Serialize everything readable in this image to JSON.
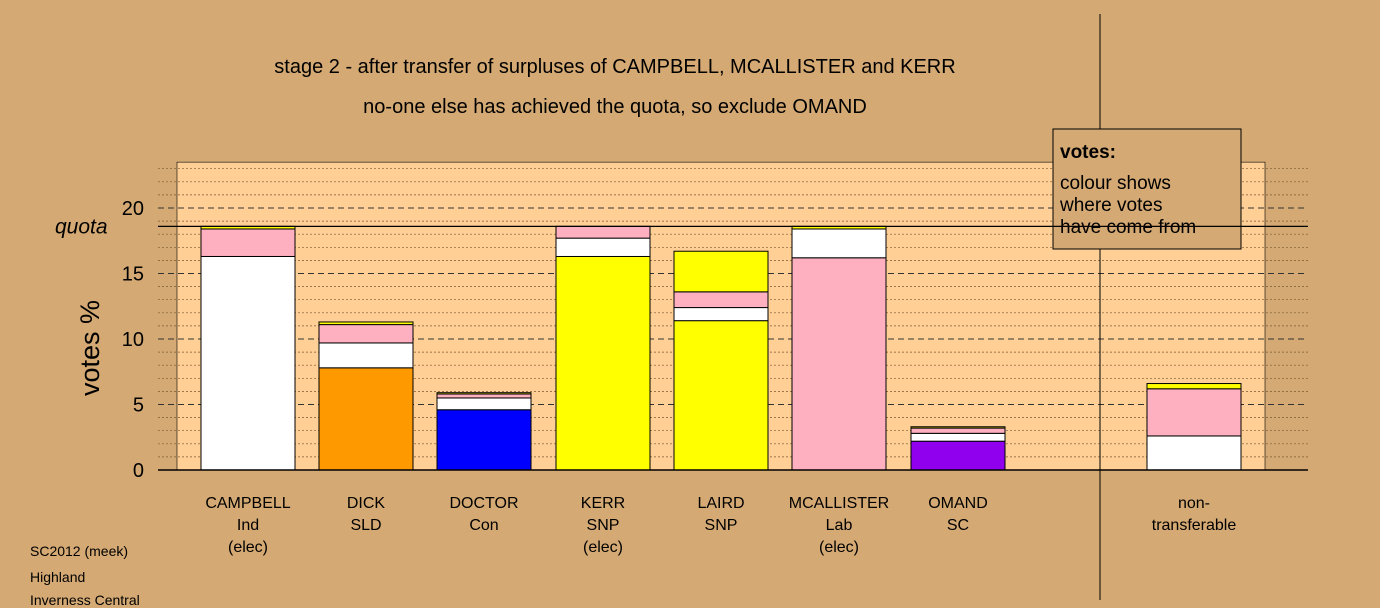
{
  "chart_data": {
    "type": "bar",
    "stacked": true,
    "title_lines": [
      "stage 2 - after transfer of surpluses of CAMPBELL, MCALLISTER and KERR",
      "no-one else has achieved the quota, so exclude OMAND"
    ],
    "ylabel": "votes %",
    "ylim": [
      0,
      23.5
    ],
    "yticks": [
      0,
      5,
      10,
      15,
      20
    ],
    "quota": 18.6,
    "quota_label": "quota",
    "grid": "major dashed every 5, minor dotted every 1",
    "colors": {
      "Ind": "#ffffff",
      "SLD": "#ff9900",
      "Con": "#0000ff",
      "SNP": "#ffff00",
      "Lab": "#ffb0c0",
      "SC": "#9000ee",
      "plot_bg": "#ffcf96",
      "page_bg": "#d4a973"
    },
    "candidates": [
      {
        "name": "CAMPBELL",
        "party": "Ind",
        "note": "(elec)",
        "segments": [
          {
            "from": "Ind",
            "value": 16.3
          },
          {
            "from": "Lab",
            "value": 2.1
          },
          {
            "from": "SNP",
            "value": 0.2
          }
        ]
      },
      {
        "name": "DICK",
        "party": "SLD",
        "note": "",
        "segments": [
          {
            "from": "SLD",
            "value": 7.8
          },
          {
            "from": "Ind",
            "value": 1.9
          },
          {
            "from": "Lab",
            "value": 1.4
          },
          {
            "from": "SNP",
            "value": 0.2
          }
        ]
      },
      {
        "name": "DOCTOR",
        "party": "Con",
        "note": "",
        "segments": [
          {
            "from": "Con",
            "value": 4.6
          },
          {
            "from": "Ind",
            "value": 0.9
          },
          {
            "from": "Lab",
            "value": 0.3
          },
          {
            "from": "SNP",
            "value": 0.1
          }
        ]
      },
      {
        "name": "KERR",
        "party": "SNP",
        "note": "(elec)",
        "segments": [
          {
            "from": "SNP",
            "value": 16.3
          },
          {
            "from": "Ind",
            "value": 1.4
          },
          {
            "from": "Lab",
            "value": 0.9
          }
        ]
      },
      {
        "name": "LAIRD",
        "party": "SNP",
        "note": "",
        "segments": [
          {
            "from": "SNP",
            "value": 11.4
          },
          {
            "from": "Ind",
            "value": 1.0
          },
          {
            "from": "Lab",
            "value": 1.2
          },
          {
            "from": "SNP",
            "value": 3.1
          }
        ]
      },
      {
        "name": "MCALLISTER",
        "party": "Lab",
        "note": "(elec)",
        "segments": [
          {
            "from": "Lab",
            "value": 16.2
          },
          {
            "from": "Ind",
            "value": 2.2
          },
          {
            "from": "SNP",
            "value": 0.2
          }
        ]
      },
      {
        "name": "OMAND",
        "party": "SC",
        "note": "",
        "segments": [
          {
            "from": "SC",
            "value": 2.2
          },
          {
            "from": "Ind",
            "value": 0.6
          },
          {
            "from": "Lab",
            "value": 0.4
          },
          {
            "from": "SNP",
            "value": 0.1
          }
        ]
      }
    ],
    "nontransferable": {
      "label_lines": [
        "non-",
        "transferable"
      ],
      "segments": [
        {
          "from": "Ind",
          "value": 2.6
        },
        {
          "from": "Lab",
          "value": 3.6
        },
        {
          "from": "SNP",
          "value": 0.4
        }
      ]
    },
    "legend": {
      "title": "votes:",
      "lines": [
        "colour shows",
        "where votes",
        "have come from"
      ],
      "placement": "top-right"
    }
  },
  "footer": {
    "lines": [
      "SC2012 (meek)",
      "Highland",
      "Inverness Central"
    ]
  }
}
